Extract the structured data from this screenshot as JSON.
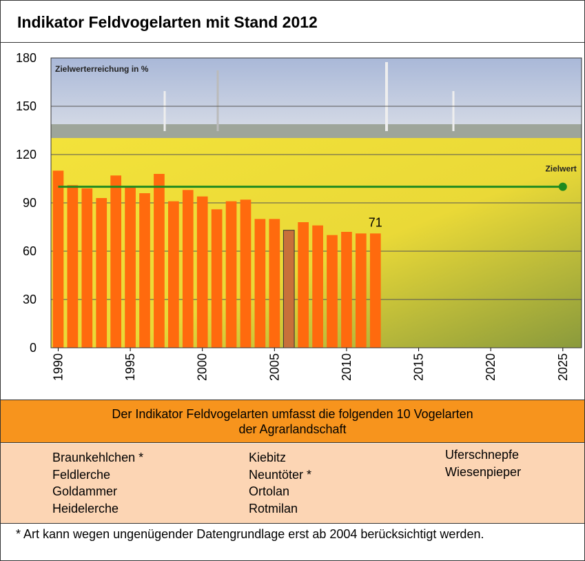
{
  "title": "Indikator Feldvogelarten mit Stand 2012",
  "chart_data": {
    "type": "bar",
    "annotation": "Zielwerterreichung in %",
    "x": [
      1990,
      1991,
      1992,
      1993,
      1994,
      1995,
      1996,
      1997,
      1998,
      1999,
      2000,
      2001,
      2002,
      2003,
      2004,
      2005,
      2006,
      2007,
      2008,
      2009,
      2010,
      2011,
      2012
    ],
    "values": [
      110,
      101,
      99,
      93,
      107,
      100,
      96,
      108,
      91,
      98,
      94,
      86,
      91,
      92,
      80,
      80,
      73,
      78,
      76,
      70,
      72,
      71,
      71
    ],
    "value_labels": [
      null,
      null,
      null,
      null,
      null,
      null,
      null,
      null,
      null,
      null,
      null,
      null,
      null,
      null,
      null,
      null,
      null,
      null,
      null,
      null,
      null,
      null,
      "71"
    ],
    "colors": [
      "#ff6a0e",
      "#ff6a0e",
      "#ff6a0e",
      "#ff6a0e",
      "#ff6a0e",
      "#ff6a0e",
      "#ff6a0e",
      "#ff6a0e",
      "#ff6a0e",
      "#ff6a0e",
      "#ff6a0e",
      "#ff6a0e",
      "#ff6a0e",
      "#ff6a0e",
      "#ff6a0e",
      "#ff6a0e",
      "#c8703a",
      "#ff6a0e",
      "#ff6a0e",
      "#ff6a0e",
      "#ff6a0e",
      "#ff6a0e",
      "#ff6a0e"
    ],
    "target": {
      "label": "Zielwert",
      "value": 100,
      "x": [
        1990,
        2025
      ],
      "color": "#1f8a1f"
    },
    "xlim": [
      1989.5,
      2026.3
    ],
    "xticks": [
      1990,
      1995,
      2000,
      2005,
      2010,
      2015,
      2020,
      2025
    ],
    "ylim": [
      0,
      180
    ],
    "yticks": [
      0,
      30,
      60,
      90,
      120,
      150,
      180
    ],
    "grid": true
  },
  "info_box": {
    "heading": [
      "Der Indikator Feldvogelarten umfasst die folgenden 10 Vogelarten",
      "der Agrarlandschaft"
    ],
    "columns": [
      [
        "Braunkehlchen *",
        "Feldlerche",
        "Goldammer",
        "Heidelerche"
      ],
      [
        "Kiebitz",
        "Neuntöter *",
        "Ortolan",
        "Rotmilan"
      ],
      [
        "Uferschnepfe",
        "Wiesenpieper"
      ]
    ]
  },
  "footnote": "* Art kann wegen ungenügender Datengrundlage erst ab 2004 berücksichtigt werden."
}
